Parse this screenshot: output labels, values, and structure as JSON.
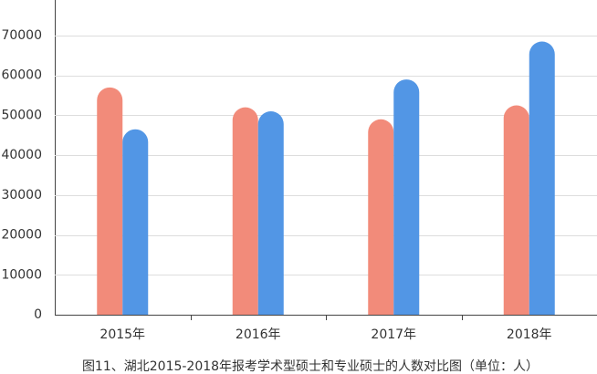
{
  "chart_data": {
    "type": "bar",
    "caption": "图11、湖北2015-2018年报考学术型硕士和专业硕士的人数对比图（单位：人）",
    "categories": [
      "2015年",
      "2016年",
      "2017年",
      "2018年"
    ],
    "series": [
      {
        "color": "#f28b7a",
        "values": [
          57000,
          52000,
          49000,
          52500
        ]
      },
      {
        "color": "#5296e5",
        "values": [
          46500,
          51000,
          59000,
          68500
        ]
      }
    ],
    "ylim": [
      0,
      70000
    ],
    "yticks": [
      0,
      10000,
      20000,
      30000,
      40000,
      50000,
      60000,
      70000
    ],
    "grid": true
  }
}
